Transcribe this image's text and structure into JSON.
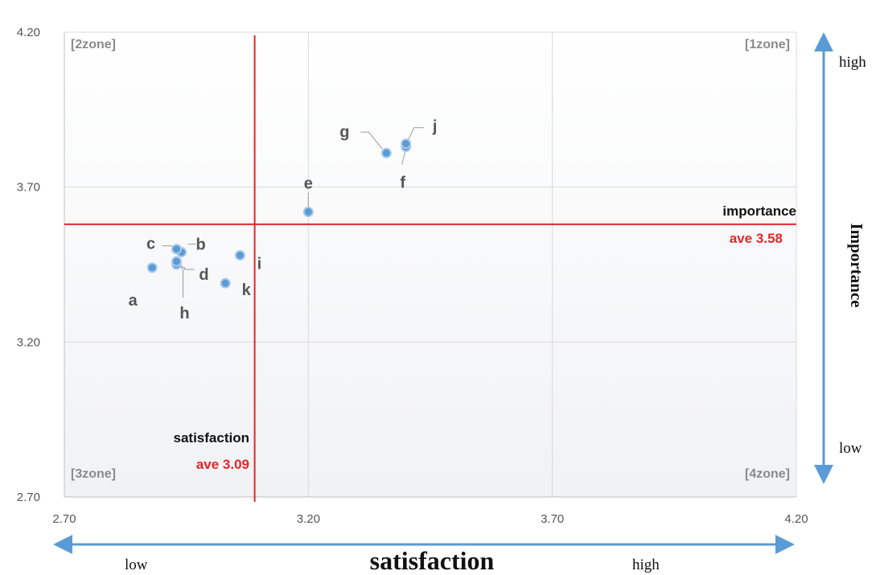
{
  "chart_data": {
    "type": "scatter",
    "xlim": [
      2.7,
      4.2
    ],
    "ylim": [
      2.7,
      4.2
    ],
    "x_ticks": [
      "2.70",
      "3.20",
      "3.70",
      "4.20"
    ],
    "y_ticks": [
      "2.70",
      "3.20",
      "3.70",
      "4.20"
    ],
    "grid": true,
    "points": [
      {
        "label": "a",
        "x": 2.88,
        "y": 3.44
      },
      {
        "label": "b",
        "x": 2.94,
        "y": 3.49
      },
      {
        "label": "c",
        "x": 2.93,
        "y": 3.5
      },
      {
        "label": "d",
        "x": 2.93,
        "y": 3.45
      },
      {
        "label": "h",
        "x": 2.93,
        "y": 3.46
      },
      {
        "label": "i",
        "x": 3.06,
        "y": 3.48
      },
      {
        "label": "k",
        "x": 3.03,
        "y": 3.39
      },
      {
        "label": "e",
        "x": 3.2,
        "y": 3.62
      },
      {
        "label": "g",
        "x": 3.36,
        "y": 3.81
      },
      {
        "label": "f",
        "x": 3.4,
        "y": 3.83
      },
      {
        "label": "j",
        "x": 3.4,
        "y": 3.84
      }
    ],
    "zones": [
      "[1zone]",
      "[2zone]",
      "[3zone]",
      "[4zone]"
    ],
    "importance_line": {
      "value": 3.58,
      "label": "importance",
      "value_label": "ave 3.58"
    },
    "satisfaction_line": {
      "value": 3.09,
      "label": "satisfaction",
      "value_label": "ave 3.09"
    },
    "xlabel": "satisfaction",
    "ylabel": "Importance",
    "x_low": "low",
    "x_high": "high",
    "y_low": "low",
    "y_high": "high",
    "colors": {
      "point": "#5b9bd5",
      "ref_line": "#e5252a",
      "axis_arrow": "#5b9bd5",
      "grid": "#d9d9d9"
    }
  }
}
